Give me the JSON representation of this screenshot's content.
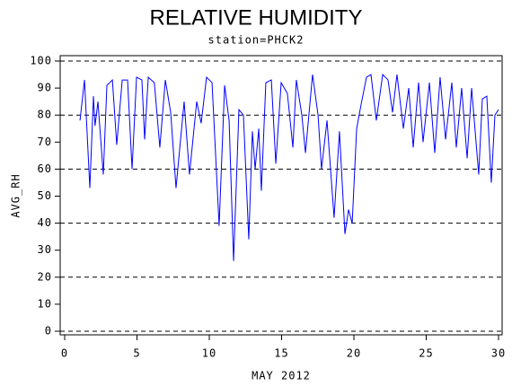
{
  "chart_data": {
    "type": "line",
    "title": "RELATIVE HUMIDITY",
    "subtitle": "station=PHCK2",
    "x_label": "MAY 2012",
    "y_label": "AVG_RH",
    "xlim": [
      0,
      30
    ],
    "ylim": [
      0,
      100
    ],
    "xticks": [
      0,
      5,
      10,
      15,
      20,
      25,
      30
    ],
    "yticks": [
      0,
      10,
      20,
      30,
      40,
      50,
      60,
      70,
      80,
      90,
      100
    ],
    "ygridlines": [
      0,
      20,
      40,
      60,
      80,
      100
    ],
    "x": [
      1.06,
      1.37,
      1.74,
      1.99,
      2.1,
      2.3,
      2.67,
      2.92,
      3.3,
      3.6,
      3.98,
      4.35,
      4.66,
      4.97,
      5.34,
      5.53,
      5.78,
      6.2,
      6.58,
      6.96,
      7.33,
      7.7,
      8.26,
      8.63,
      9.13,
      9.44,
      9.81,
      10.19,
      10.68,
      11.06,
      11.37,
      11.68,
      12.05,
      12.36,
      12.73,
      12.98,
      13.17,
      13.42,
      13.6,
      13.91,
      14.29,
      14.6,
      14.97,
      15.4,
      15.78,
      16.02,
      16.4,
      16.65,
      17.14,
      17.52,
      17.76,
      18.14,
      18.63,
      19.0,
      19.38,
      19.63,
      19.88,
      20.19,
      20.5,
      20.87,
      21.18,
      21.55,
      21.99,
      22.36,
      22.67,
      22.98,
      23.42,
      23.79,
      24.1,
      24.47,
      24.78,
      25.22,
      25.59,
      25.96,
      26.34,
      26.77,
      27.08,
      27.45,
      27.83,
      28.14,
      28.63,
      28.88,
      29.19,
      29.5,
      29.75,
      30.0
    ],
    "series": [
      {
        "color": "#0000ff",
        "values": [
          78,
          93,
          53,
          87,
          76,
          85,
          58,
          91,
          93,
          69,
          93,
          93,
          60,
          94,
          93,
          71,
          94,
          92,
          68,
          93,
          81,
          53,
          85,
          58,
          85,
          77,
          94,
          92,
          39,
          91,
          78,
          26,
          82,
          80,
          34,
          74,
          60,
          75,
          52,
          92,
          93,
          62,
          92,
          88,
          68,
          93,
          80,
          66,
          95,
          80,
          60,
          78,
          42,
          74,
          36,
          45,
          40,
          75,
          84,
          94,
          95,
          78,
          95,
          93,
          81,
          95,
          75,
          90,
          68,
          92,
          70,
          92,
          66,
          94,
          71,
          92,
          68,
          90,
          64,
          90,
          58,
          86,
          87,
          55,
          80,
          82
        ]
      }
    ]
  }
}
